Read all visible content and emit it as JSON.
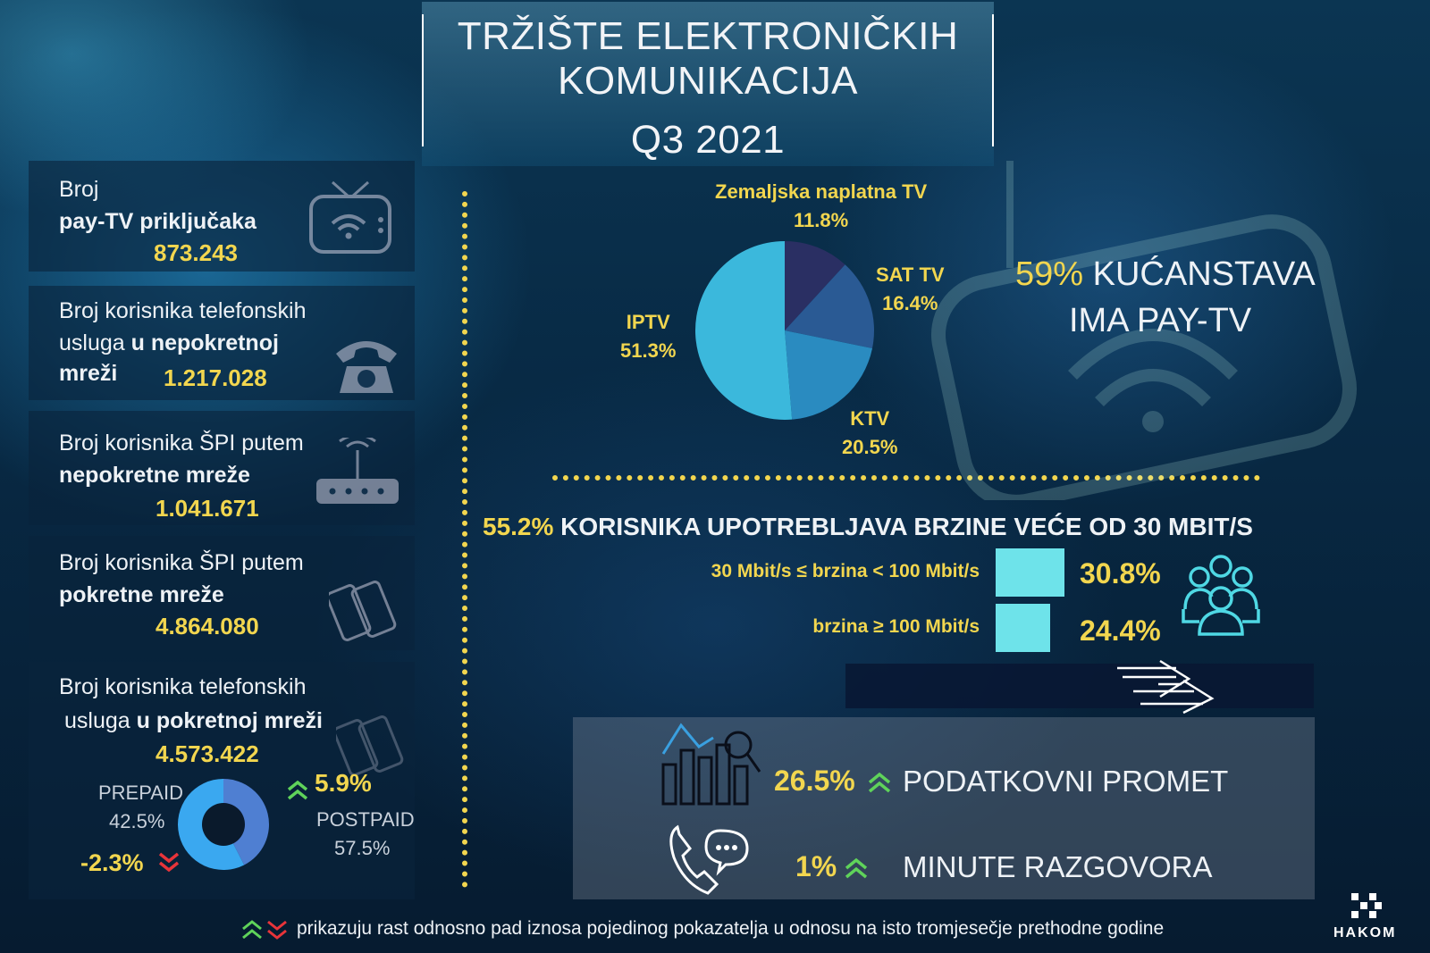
{
  "title": {
    "line1": "TRŽIŠTE ELEKTRONIČKIH",
    "line2": "KOMUNIKACIJA",
    "line3": "Q3 2021"
  },
  "cards": {
    "paytv": {
      "line1": "Broj",
      "line2": "pay-TV priključaka",
      "value": "873.243",
      "icon": "tv-icon"
    },
    "fixed_phone": {
      "line1": "Broj korisnika telefonskih",
      "line2a": "usluga ",
      "line2b": "u nepokretnoj",
      "line3": "mreži",
      "value": "1.217.028",
      "icon": "phone-icon"
    },
    "fixed_internet": {
      "line1": "Broj korisnika ŠPI putem",
      "line2": "nepokretne mreže",
      "value": "1.041.671",
      "icon": "router-icon"
    },
    "mobile_internet": {
      "line1": "Broj korisnika ŠPI putem",
      "line2": "pokretne mreže",
      "value": "4.864.080",
      "icon": "smartphones-icon"
    },
    "mobile_phone": {
      "line1": "Broj korisnika telefonskih",
      "line2a": "usluga ",
      "line2b": "u pokretnoj mreži",
      "value": "4.573.422",
      "prepaid_label": "PREPAID",
      "prepaid_pct": "42.5%",
      "prepaid_change": "-2.3%",
      "postpaid_label": "POSTPAID",
      "postpaid_pct": "57.5%",
      "postpaid_change": "5.9%"
    }
  },
  "paytv_share": {
    "pct": "59%",
    "text1": " KUĆANSTAVA",
    "text2": "IMA PAY-TV"
  },
  "broadband": {
    "headline_pct": "55.2%",
    "headline_text": " KORISNIKA  UPOTREBLJAVA BRZINE VEĆE OD 30 MBIT/S",
    "rows": [
      {
        "label": "30 Mbit/s ≤ brzina  < 100 Mbit/s",
        "value": "30.8%",
        "share": 30.8
      },
      {
        "label": "brzina ≥  100 Mbit/s",
        "value": "24.4%",
        "share": 24.4
      }
    ]
  },
  "traffic": {
    "data_pct": "26.5%",
    "data_label": "PODATKOVNI PROMET",
    "minutes_pct": "1%",
    "minutes_label": "MINUTE RAZGOVORA"
  },
  "footnote": "prikazuju rast odnosno pad iznosa pojedinog pokazatelja u odnosu na isto tromjesečje prethodne godine",
  "logo_text": "HAKOM",
  "colors": {
    "accent_yellow": "#f2d64f",
    "up_green": "#5fd35a",
    "down_red": "#e8343a",
    "bar_cyan": "#6ee3ea"
  },
  "chart_data": [
    {
      "type": "pie",
      "categories": [
        "Zemaljska naplatna TV",
        "SAT TV",
        "KTV",
        "IPTV"
      ],
      "values": [
        11.8,
        16.4,
        20.5,
        51.3
      ],
      "labels": [
        "11.8%",
        "16.4%",
        "20.5%",
        "51.3%"
      ],
      "colors": [
        "#2a2f63",
        "#2a5a94",
        "#2a8bc0",
        "#3bb8dc"
      ]
    },
    {
      "type": "pie",
      "categories": [
        "PREPAID",
        "POSTPAID"
      ],
      "values": [
        42.5,
        57.5
      ],
      "colors": [
        "#4f7fd2",
        "#3aa8f0"
      ]
    }
  ]
}
